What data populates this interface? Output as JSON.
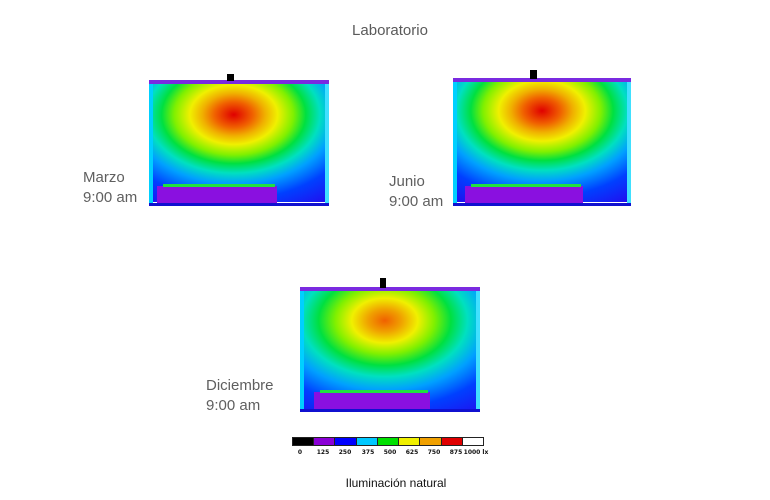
{
  "title": "Laboratorio",
  "panels": [
    {
      "id": "marzo",
      "month": "Marzo",
      "time": "9:00 am"
    },
    {
      "id": "junio",
      "month": "Junio",
      "time": "9:00 am"
    },
    {
      "id": "diciembre",
      "month": "Diciembre",
      "time": "9:00 am"
    }
  ],
  "legend": {
    "colors": [
      "#000000",
      "#8a00d6",
      "#0000ff",
      "#00c8ff",
      "#00e000",
      "#f0f000",
      "#f0a000",
      "#e00000",
      "#ffffff"
    ],
    "labels": [
      "0",
      "125",
      "250",
      "375",
      "500",
      "625",
      "750",
      "875",
      "1000 lx"
    ]
  },
  "footer": "Iluminación natural"
}
